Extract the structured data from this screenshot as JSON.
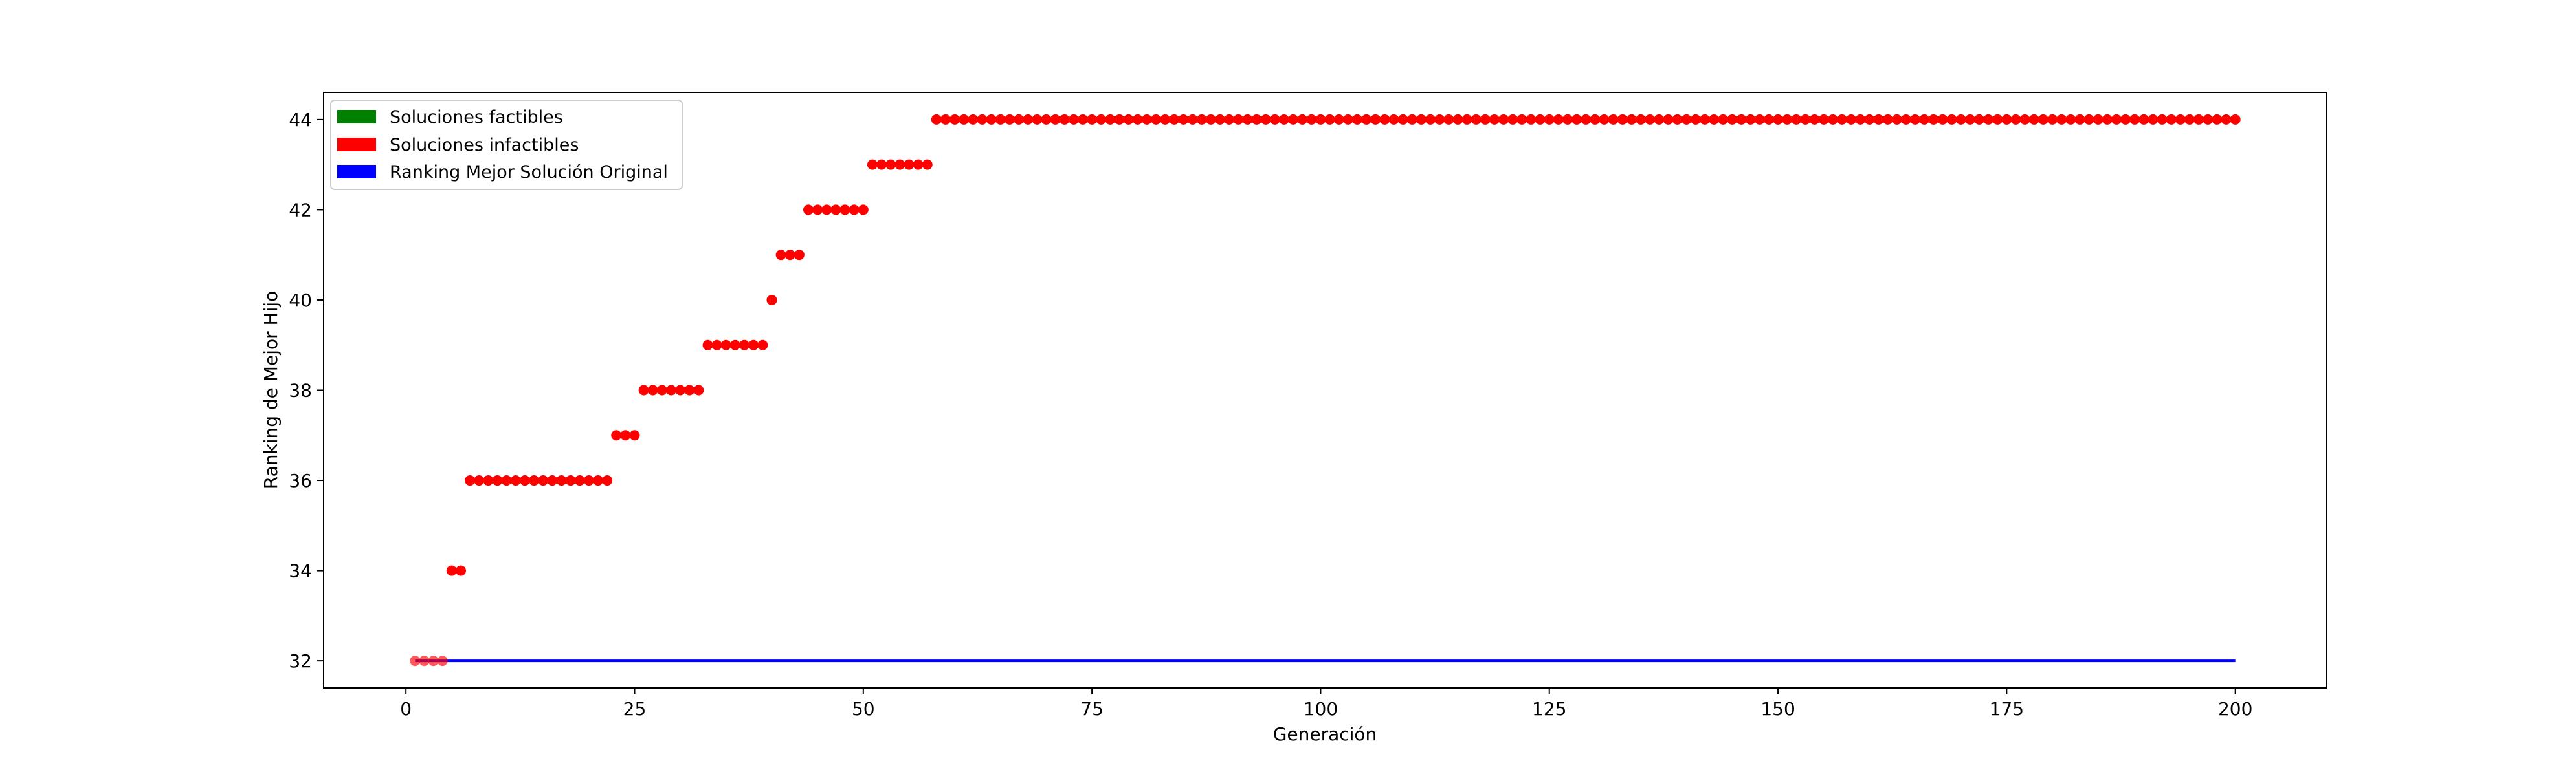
{
  "chart_data": {
    "type": "scatter",
    "title": "",
    "xlabel": "Generación",
    "ylabel": "Ranking de Mejor Hijo",
    "xlim": [
      -9,
      210
    ],
    "ylim": [
      31.4,
      44.6
    ],
    "xticks": [
      0,
      25,
      50,
      75,
      100,
      125,
      150,
      175,
      200
    ],
    "yticks": [
      32,
      34,
      36,
      38,
      40,
      42,
      44
    ],
    "grid": false,
    "legend_position": "top-left",
    "legend": [
      {
        "label": "Soluciones factibles",
        "color": "#008000"
      },
      {
        "label": "Soluciones infactibles",
        "color": "#ff0000"
      },
      {
        "label": "Ranking Mejor Solución Original",
        "color": "#0000ff"
      }
    ],
    "series": [
      {
        "name": "Soluciones infactibles",
        "kind": "scatter",
        "color": "#ff0000",
        "runs": [
          {
            "from": 1,
            "to": 4,
            "y": 32
          },
          {
            "from": 5,
            "to": 6,
            "y": 34
          },
          {
            "from": 7,
            "to": 22,
            "y": 36
          },
          {
            "from": 23,
            "to": 25,
            "y": 37
          },
          {
            "from": 26,
            "to": 32,
            "y": 38
          },
          {
            "from": 33,
            "to": 39,
            "y": 39
          },
          {
            "from": 40,
            "to": 40,
            "y": 40
          },
          {
            "from": 41,
            "to": 43,
            "y": 41
          },
          {
            "from": 44,
            "to": 50,
            "y": 42
          },
          {
            "from": 51,
            "to": 57,
            "y": 43
          },
          {
            "from": 58,
            "to": 200,
            "y": 44
          }
        ]
      },
      {
        "name": "Ranking Mejor Solución Original",
        "kind": "line",
        "color": "#0000ff",
        "x": [
          1,
          200
        ],
        "y": [
          32,
          32
        ]
      }
    ]
  }
}
